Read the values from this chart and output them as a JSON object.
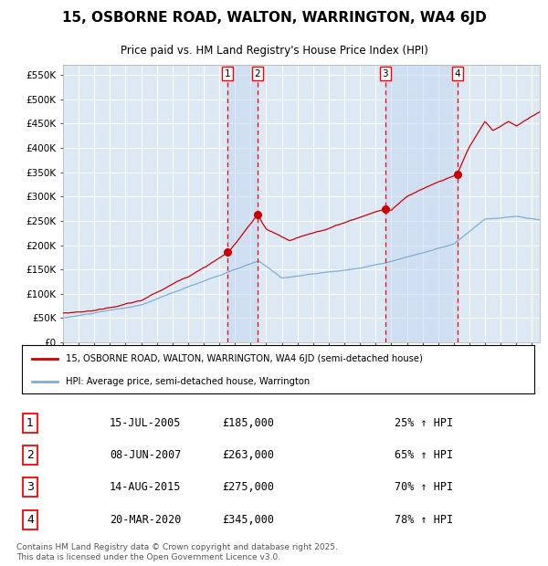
{
  "title": "15, OSBORNE ROAD, WALTON, WARRINGTON, WA4 6JD",
  "subtitle": "Price paid vs. HM Land Registry's House Price Index (HPI)",
  "title_fontsize": 11,
  "subtitle_fontsize": 8.5,
  "background_color": "#ffffff",
  "plot_bg_color": "#dce9f5",
  "grid_color": "#ffffff",
  "red_line_color": "#cc0000",
  "blue_line_color": "#7bafd4",
  "shade_color": "#c5d8ee",
  "ylim": [
    0,
    570000
  ],
  "yticks": [
    0,
    50000,
    100000,
    150000,
    200000,
    250000,
    300000,
    350000,
    400000,
    450000,
    500000,
    550000
  ],
  "ytick_labels": [
    "£0",
    "£50K",
    "£100K",
    "£150K",
    "£200K",
    "£250K",
    "£300K",
    "£350K",
    "£400K",
    "£450K",
    "£500K",
    "£550K"
  ],
  "xmin": 1995,
  "xmax": 2025.5,
  "transactions": [
    {
      "label": "1",
      "date_x": 2005.54,
      "price": 185000,
      "hpi_pct": 25,
      "date_str": "15-JUL-2005"
    },
    {
      "label": "2",
      "date_x": 2007.44,
      "price": 263000,
      "hpi_pct": 65,
      "date_str": "08-JUN-2007"
    },
    {
      "label": "3",
      "date_x": 2015.62,
      "price": 275000,
      "hpi_pct": 70,
      "date_str": "14-AUG-2015"
    },
    {
      "label": "4",
      "date_x": 2020.22,
      "price": 345000,
      "hpi_pct": 78,
      "date_str": "20-MAR-2020"
    }
  ],
  "legend_entries": [
    "15, OSBORNE ROAD, WALTON, WARRINGTON, WA4 6JD (semi-detached house)",
    "HPI: Average price, semi-detached house, Warrington"
  ],
  "footer": "Contains HM Land Registry data © Crown copyright and database right 2025.\nThis data is licensed under the Open Government Licence v3.0.",
  "footer_fontsize": 6.5
}
